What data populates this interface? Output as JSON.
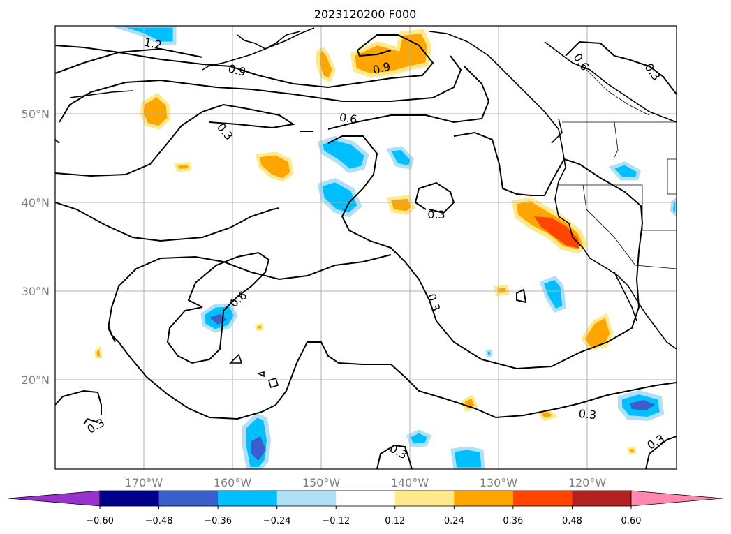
{
  "title": "2023120200 F000",
  "lat_labels": [
    "50°N",
    "40°N",
    "30°N",
    "20°N"
  ],
  "lon_labels": [
    "170°W",
    "160°W",
    "150°W",
    "140°W",
    "130°W",
    "120°W"
  ],
  "colorbar": {
    "ticks": [
      "−0.60",
      "−0.48",
      "−0.36",
      "−0.24",
      "−0.12",
      "0.12",
      "0.24",
      "0.36",
      "0.48",
      "0.60"
    ],
    "colors": [
      "#9932cc",
      "#00008b",
      "#3a5fcd",
      "#00bfff",
      "#b0e0f8",
      "#ffffff",
      "#ffe98a",
      "#ffa500",
      "#ff4500",
      "#b22222",
      "#ff88b0"
    ]
  },
  "contour_labels": [
    "1.2",
    "0.9",
    "0.9",
    "0.6",
    "0.6",
    "0.3",
    "0.3",
    "0.3",
    "0.3",
    "0.3",
    "0.3",
    "0.3",
    "0.6",
    "0.3"
  ]
}
